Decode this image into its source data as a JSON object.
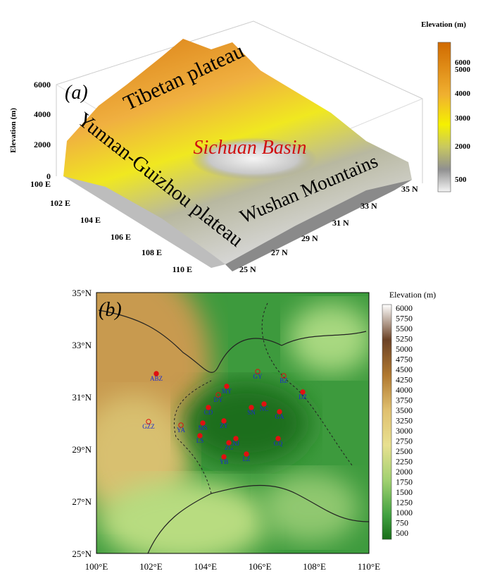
{
  "panel_a": {
    "label": "(a)",
    "z_axis_label": "Elevation (m)",
    "z_ticks": [
      "0",
      "2000",
      "4000",
      "6000"
    ],
    "lon_ticks": [
      "100 E",
      "102 E",
      "104 E",
      "106 E",
      "108 E",
      "110 E"
    ],
    "lat_ticks": [
      "25 N",
      "27 N",
      "29 N",
      "31 N",
      "33 N",
      "35 N"
    ],
    "regions": [
      "Tibetan plateau",
      "Sichuan Basin",
      "Yunnan-Guizhou plateau",
      "Wushan Mountains"
    ],
    "colorbar": {
      "title": "Elevation (m)",
      "ticks": [
        "6000",
        "5000",
        "4000",
        "3000",
        "2000",
        "500"
      ]
    }
  },
  "panel_b": {
    "label": "(b)",
    "x_ticks": [
      "100°E",
      "102°E",
      "104°E",
      "106°E",
      "108°E",
      "110°E"
    ],
    "y_ticks": [
      "35°N",
      "33°N",
      "31°N",
      "29°N",
      "27°N",
      "25°N"
    ],
    "colorbar": {
      "title": "Elevation (m)",
      "ticks": [
        "6000",
        "5750",
        "5500",
        "5250",
        "5000",
        "4750",
        "4500",
        "4250",
        "4000",
        "3750",
        "3500",
        "3250",
        "3000",
        "2750",
        "2500",
        "2250",
        "2000",
        "1750",
        "1500",
        "1250",
        "1000",
        "750",
        "500"
      ]
    },
    "stations": [
      "ABZ",
      "GY",
      "BZ",
      "MY",
      "DY",
      "DZ",
      "CD",
      "SN",
      "NC",
      "GA",
      "GZZ",
      "YA",
      "MS",
      "ZY",
      "LS",
      "NJ",
      "CQ",
      "ZG",
      "YB",
      "LZ"
    ]
  }
}
